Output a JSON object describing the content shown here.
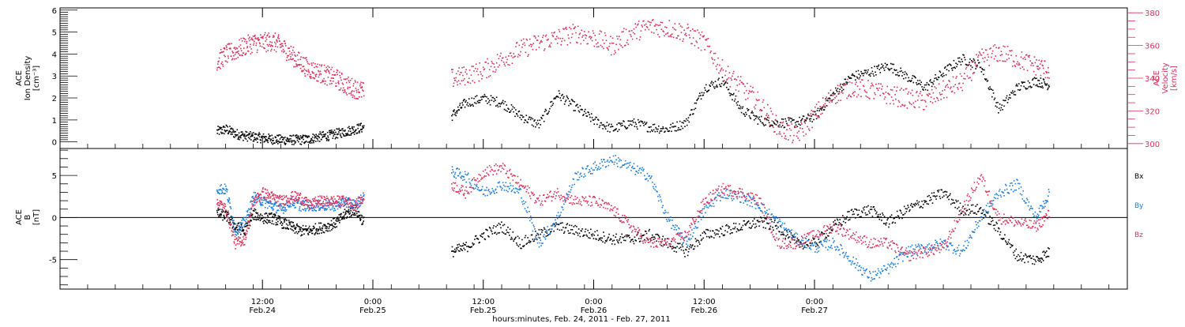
{
  "chart_data": [
    {
      "type": "scatter",
      "panel": "top",
      "ylabel": "ACE\nIon Density\n[cm⁻³]",
      "ylim": [
        -0.3,
        6.1
      ],
      "yticks": [
        0,
        1,
        2,
        3,
        4,
        5,
        6
      ],
      "y2label": "ACE\nVelocity\n[km/s]",
      "y2lim": [
        297,
        383
      ],
      "y2ticks": [
        300,
        320,
        340,
        360,
        380
      ],
      "y2_color": "#e0305a",
      "series": [
        {
          "color": "#000000",
          "axis": "left",
          "segments": [
            {
              "x": [
                7.0,
                8.0,
                9.0,
                10.0,
                11.0,
                12.0,
                13.0,
                14.0,
                15.0,
                16.0,
                17.0,
                18.0,
                19.0,
                20.0,
                21.0,
                22.0,
                23.0
              ],
              "y": [
                0.5,
                0.6,
                0.4,
                0.3,
                0.25,
                0.2,
                0.15,
                0.12,
                0.12,
                0.12,
                0.15,
                0.25,
                0.3,
                0.4,
                0.5,
                0.6,
                0.7
              ]
            },
            {
              "x": [
                32.5,
                34.0,
                36.0,
                38.0,
                40.0,
                42.0,
                44.0,
                46.0,
                48.0,
                50.0,
                52.0,
                54.0,
                56.0,
                58.0,
                60.0,
                62.0,
                64.0,
                66.0,
                68.0,
                70.0,
                72.0,
                74.0,
                76.0,
                78.0,
                80.0,
                82.0,
                84.0,
                86.0,
                88.0,
                90.0,
                92.0,
                94.0,
                96.0,
                97.5
              ],
              "y": [
                1.2,
                1.8,
                2.0,
                1.8,
                1.2,
                0.8,
                2.2,
                1.6,
                1.0,
                0.6,
                0.9,
                0.7,
                0.6,
                0.9,
                2.5,
                2.8,
                1.5,
                1.0,
                0.9,
                0.9,
                1.2,
                2.2,
                3.0,
                3.2,
                3.5,
                3.0,
                2.5,
                3.2,
                3.8,
                3.5,
                1.5,
                2.5,
                2.8,
                2.6
              ]
            }
          ]
        },
        {
          "color": "#e0305a",
          "axis": "right",
          "segments": [
            {
              "x": [
                7.0,
                8.0,
                9.0,
                10.0,
                11.0,
                12.0,
                13.0,
                14.0,
                15.0,
                16.0,
                17.0,
                18.0,
                19.0,
                20.0,
                21.0,
                22.0,
                23.0
              ],
              "y": [
                350,
                355,
                357,
                360,
                362,
                362,
                363,
                360,
                355,
                350,
                346,
                344,
                342,
                340,
                336,
                334,
                332
              ]
            },
            {
              "x": [
                32.5,
                34.0,
                36.0,
                38.0,
                40.0,
                42.0,
                44.0,
                46.0,
                48.0,
                50.0,
                52.0,
                54.0,
                56.0,
                58.0,
                60.0,
                62.0,
                64.0,
                66.0,
                68.0,
                70.0,
                72.0,
                74.0,
                76.0,
                78.0,
                80.0,
                82.0,
                84.0,
                86.0,
                88.0,
                90.0,
                92.0,
                94.0,
                96.0,
                97.5
              ],
              "y": [
                340,
                342,
                345,
                352,
                358,
                362,
                365,
                368,
                365,
                360,
                368,
                372,
                371,
                368,
                362,
                345,
                335,
                325,
                310,
                305,
                318,
                330,
                335,
                333,
                330,
                328,
                326,
                333,
                338,
                352,
                356,
                352,
                348,
                345
              ]
            }
          ]
        }
      ]
    },
    {
      "type": "scatter",
      "panel": "bottom",
      "ylabel": "ACE\nB\n[nT]",
      "ylim": [
        -8.5,
        8.2
      ],
      "yticks": [
        -5,
        0,
        5
      ],
      "zero_line": true,
      "series": [
        {
          "name": "Bx",
          "color": "#000000",
          "segments": [
            {
              "x": [
                7.0,
                8.0,
                9.0,
                10.0,
                11.0,
                12.0,
                13.0,
                14.0,
                15.0,
                16.0,
                17.0,
                18.0,
                19.0,
                20.0,
                21.0,
                22.0,
                23.0
              ],
              "y": [
                0.5,
                0.3,
                -1.0,
                -1.5,
                0.5,
                0.0,
                0.0,
                -0.5,
                -1.0,
                -1.5,
                -1.5,
                -1.2,
                -1.0,
                -0.5,
                0.5,
                1.0,
                -0.5
              ]
            },
            {
              "x": [
                32.5,
                34.0,
                36.0,
                38.0,
                40.0,
                42.0,
                44.0,
                46.0,
                48.0,
                50.0,
                52.0,
                54.0,
                56.0,
                58.0,
                60.0,
                62.0,
                64.0,
                66.0,
                68.0,
                70.0,
                72.0,
                74.0,
                76.0,
                78.0,
                80.0,
                82.0,
                84.0,
                86.0,
                88.0,
                90.0,
                92.0,
                94.0,
                96.0,
                97.5
              ],
              "y": [
                -4.0,
                -3.5,
                -2.0,
                -1.0,
                -3.0,
                -2.0,
                -1.0,
                -1.5,
                -2.0,
                -2.5,
                -2.5,
                -2.0,
                -3.0,
                -4.0,
                -2.0,
                -1.5,
                -1.0,
                -0.5,
                -1.0,
                -3.0,
                -3.0,
                -1.0,
                0.5,
                1.0,
                -0.5,
                1.0,
                2.0,
                3.0,
                1.0,
                1.0,
                -1.5,
                -4.5,
                -5.0,
                -4.0
              ]
            }
          ]
        },
        {
          "name": "By",
          "color": "#1a7fe0",
          "segments": [
            {
              "x": [
                7.0,
                8.0,
                9.0,
                10.0,
                11.0,
                12.0,
                13.0,
                14.0,
                15.0,
                16.0,
                17.0,
                18.0,
                19.0,
                20.0,
                21.0,
                22.0,
                23.0
              ],
              "y": [
                3.5,
                3.4,
                -1.5,
                -0.5,
                2.5,
                2.0,
                1.5,
                1.0,
                2.0,
                1.5,
                1.5,
                1.5,
                1.5,
                1.5,
                2.0,
                1.5,
                2.5
              ]
            },
            {
              "x": [
                32.5,
                34.0,
                36.0,
                38.0,
                40.0,
                42.0,
                44.0,
                46.0,
                48.0,
                50.0,
                52.0,
                54.0,
                56.0,
                58.0,
                60.0,
                62.0,
                64.0,
                66.0,
                68.0,
                70.0,
                72.0,
                74.0,
                76.0,
                78.0,
                80.0,
                82.0,
                84.0,
                86.0,
                88.0,
                90.0,
                92.0,
                94.0,
                96.0,
                97.5
              ],
              "y": [
                5.5,
                5.0,
                3.0,
                4.0,
                3.0,
                -3.0,
                0.0,
                5.0,
                6.0,
                7.0,
                6.0,
                5.0,
                0.0,
                -3.0,
                1.0,
                3.0,
                2.5,
                1.5,
                -0.5,
                -2.5,
                -3.5,
                -3.0,
                -5.0,
                -7.0,
                -6.0,
                -4.0,
                -3.5,
                -3.0,
                -4.0,
                0.0,
                3.0,
                4.0,
                0.0,
                3.0
              ]
            }
          ]
        },
        {
          "name": "Bz",
          "color": "#e0305a",
          "segments": [
            {
              "x": [
                7.0,
                8.0,
                9.0,
                10.0,
                11.0,
                12.0,
                13.0,
                14.0,
                15.0,
                16.0,
                17.0,
                18.0,
                19.0,
                20.0,
                21.0,
                22.0,
                23.0
              ],
              "y": [
                2.0,
                1.0,
                -3.0,
                -2.5,
                2.0,
                3.0,
                2.5,
                2.0,
                2.5,
                2.5,
                1.5,
                2.0,
                2.0,
                2.0,
                2.0,
                1.5,
                2.5
              ]
            },
            {
              "x": [
                32.5,
                34.0,
                36.0,
                38.0,
                40.0,
                42.0,
                44.0,
                46.0,
                48.0,
                50.0,
                52.0,
                54.0,
                56.0,
                58.0,
                60.0,
                62.0,
                64.0,
                66.0,
                68.0,
                70.0,
                72.0,
                74.0,
                76.0,
                78.0,
                80.0,
                82.0,
                84.0,
                86.0,
                88.0,
                90.0,
                92.0,
                94.0,
                96.0,
                97.5
              ],
              "y": [
                4.0,
                3.0,
                5.5,
                6.0,
                4.0,
                2.0,
                3.0,
                2.0,
                2.0,
                1.0,
                -1.0,
                -3.0,
                -3.0,
                -2.0,
                2.0,
                3.5,
                3.0,
                2.0,
                -3.0,
                -3.0,
                -2.0,
                -1.0,
                -2.0,
                -3.0,
                -3.0,
                -4.5,
                -4.0,
                -3.5,
                1.0,
                5.0,
                0.0,
                -0.5,
                -1.0,
                0.5
              ]
            }
          ]
        }
      ]
    }
  ],
  "legend": {
    "bx": "Bx",
    "by": "By",
    "bz": "Bz"
  },
  "x_axis": {
    "xlim": [
      -10,
      106
    ],
    "ticks": [
      {
        "x": 12,
        "line1": "12:00",
        "line2": "Feb.24"
      },
      {
        "x": 24,
        "line1": "0:00",
        "line2": "Feb.25"
      },
      {
        "x": 36,
        "line1": "12:00",
        "line2": "Feb.25"
      },
      {
        "x": 48,
        "line1": "0:00",
        "line2": "Feb.26"
      },
      {
        "x": 60,
        "line1": "12:00",
        "line2": "Feb.26"
      },
      {
        "x": 72,
        "line1": "0:00",
        "line2": "Feb.27"
      }
    ],
    "minor_step": 3,
    "label": "hours:minutes, Feb. 24, 2011 - Feb. 27, 2011"
  }
}
